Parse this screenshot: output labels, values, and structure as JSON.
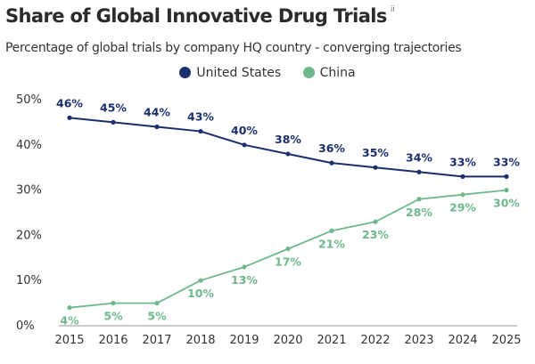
{
  "title": "Share of Global Innovative Drug Trials",
  "title_note": "ii",
  "subtitle": "Percentage of global trials by company HQ country - converging trajectories",
  "colors": {
    "us": "#1b2f6e",
    "china": "#6fb88c",
    "grid": "#e6e6e6",
    "axis": "#999999"
  },
  "chart_data": {
    "type": "line",
    "title": "Share of Global Innovative Drug Trials",
    "subtitle": "Percentage of global trials by company HQ country - converging trajectories",
    "xlabel": "",
    "ylabel": "",
    "x": [
      "2015",
      "2016",
      "2017",
      "2018",
      "2019",
      "2020",
      "2021",
      "2022",
      "2023",
      "2024",
      "2025"
    ],
    "ylim": [
      0,
      50
    ],
    "yticks": [
      0,
      10,
      20,
      30,
      40,
      50
    ],
    "ytick_labels": [
      "0%",
      "10%",
      "20%",
      "30%",
      "40%",
      "50%"
    ],
    "grid": false,
    "legend_position": "top-center",
    "series": [
      {
        "name": "United States",
        "key": "us",
        "color": "#1b2f6e",
        "values": [
          46,
          45,
          44,
          43,
          40,
          38,
          36,
          35,
          34,
          33,
          33
        ],
        "labels": [
          "46%",
          "45%",
          "44%",
          "43%",
          "40%",
          "38%",
          "36%",
          "35%",
          "34%",
          "33%",
          "33%"
        ]
      },
      {
        "name": "China",
        "key": "china",
        "color": "#6fb88c",
        "values": [
          4,
          5,
          5,
          10,
          13,
          17,
          21,
          23,
          28,
          29,
          30
        ],
        "labels": [
          "4%",
          "5%",
          "5%",
          "10%",
          "13%",
          "17%",
          "21%",
          "23%",
          "28%",
          "29%",
          "30%"
        ]
      }
    ]
  }
}
